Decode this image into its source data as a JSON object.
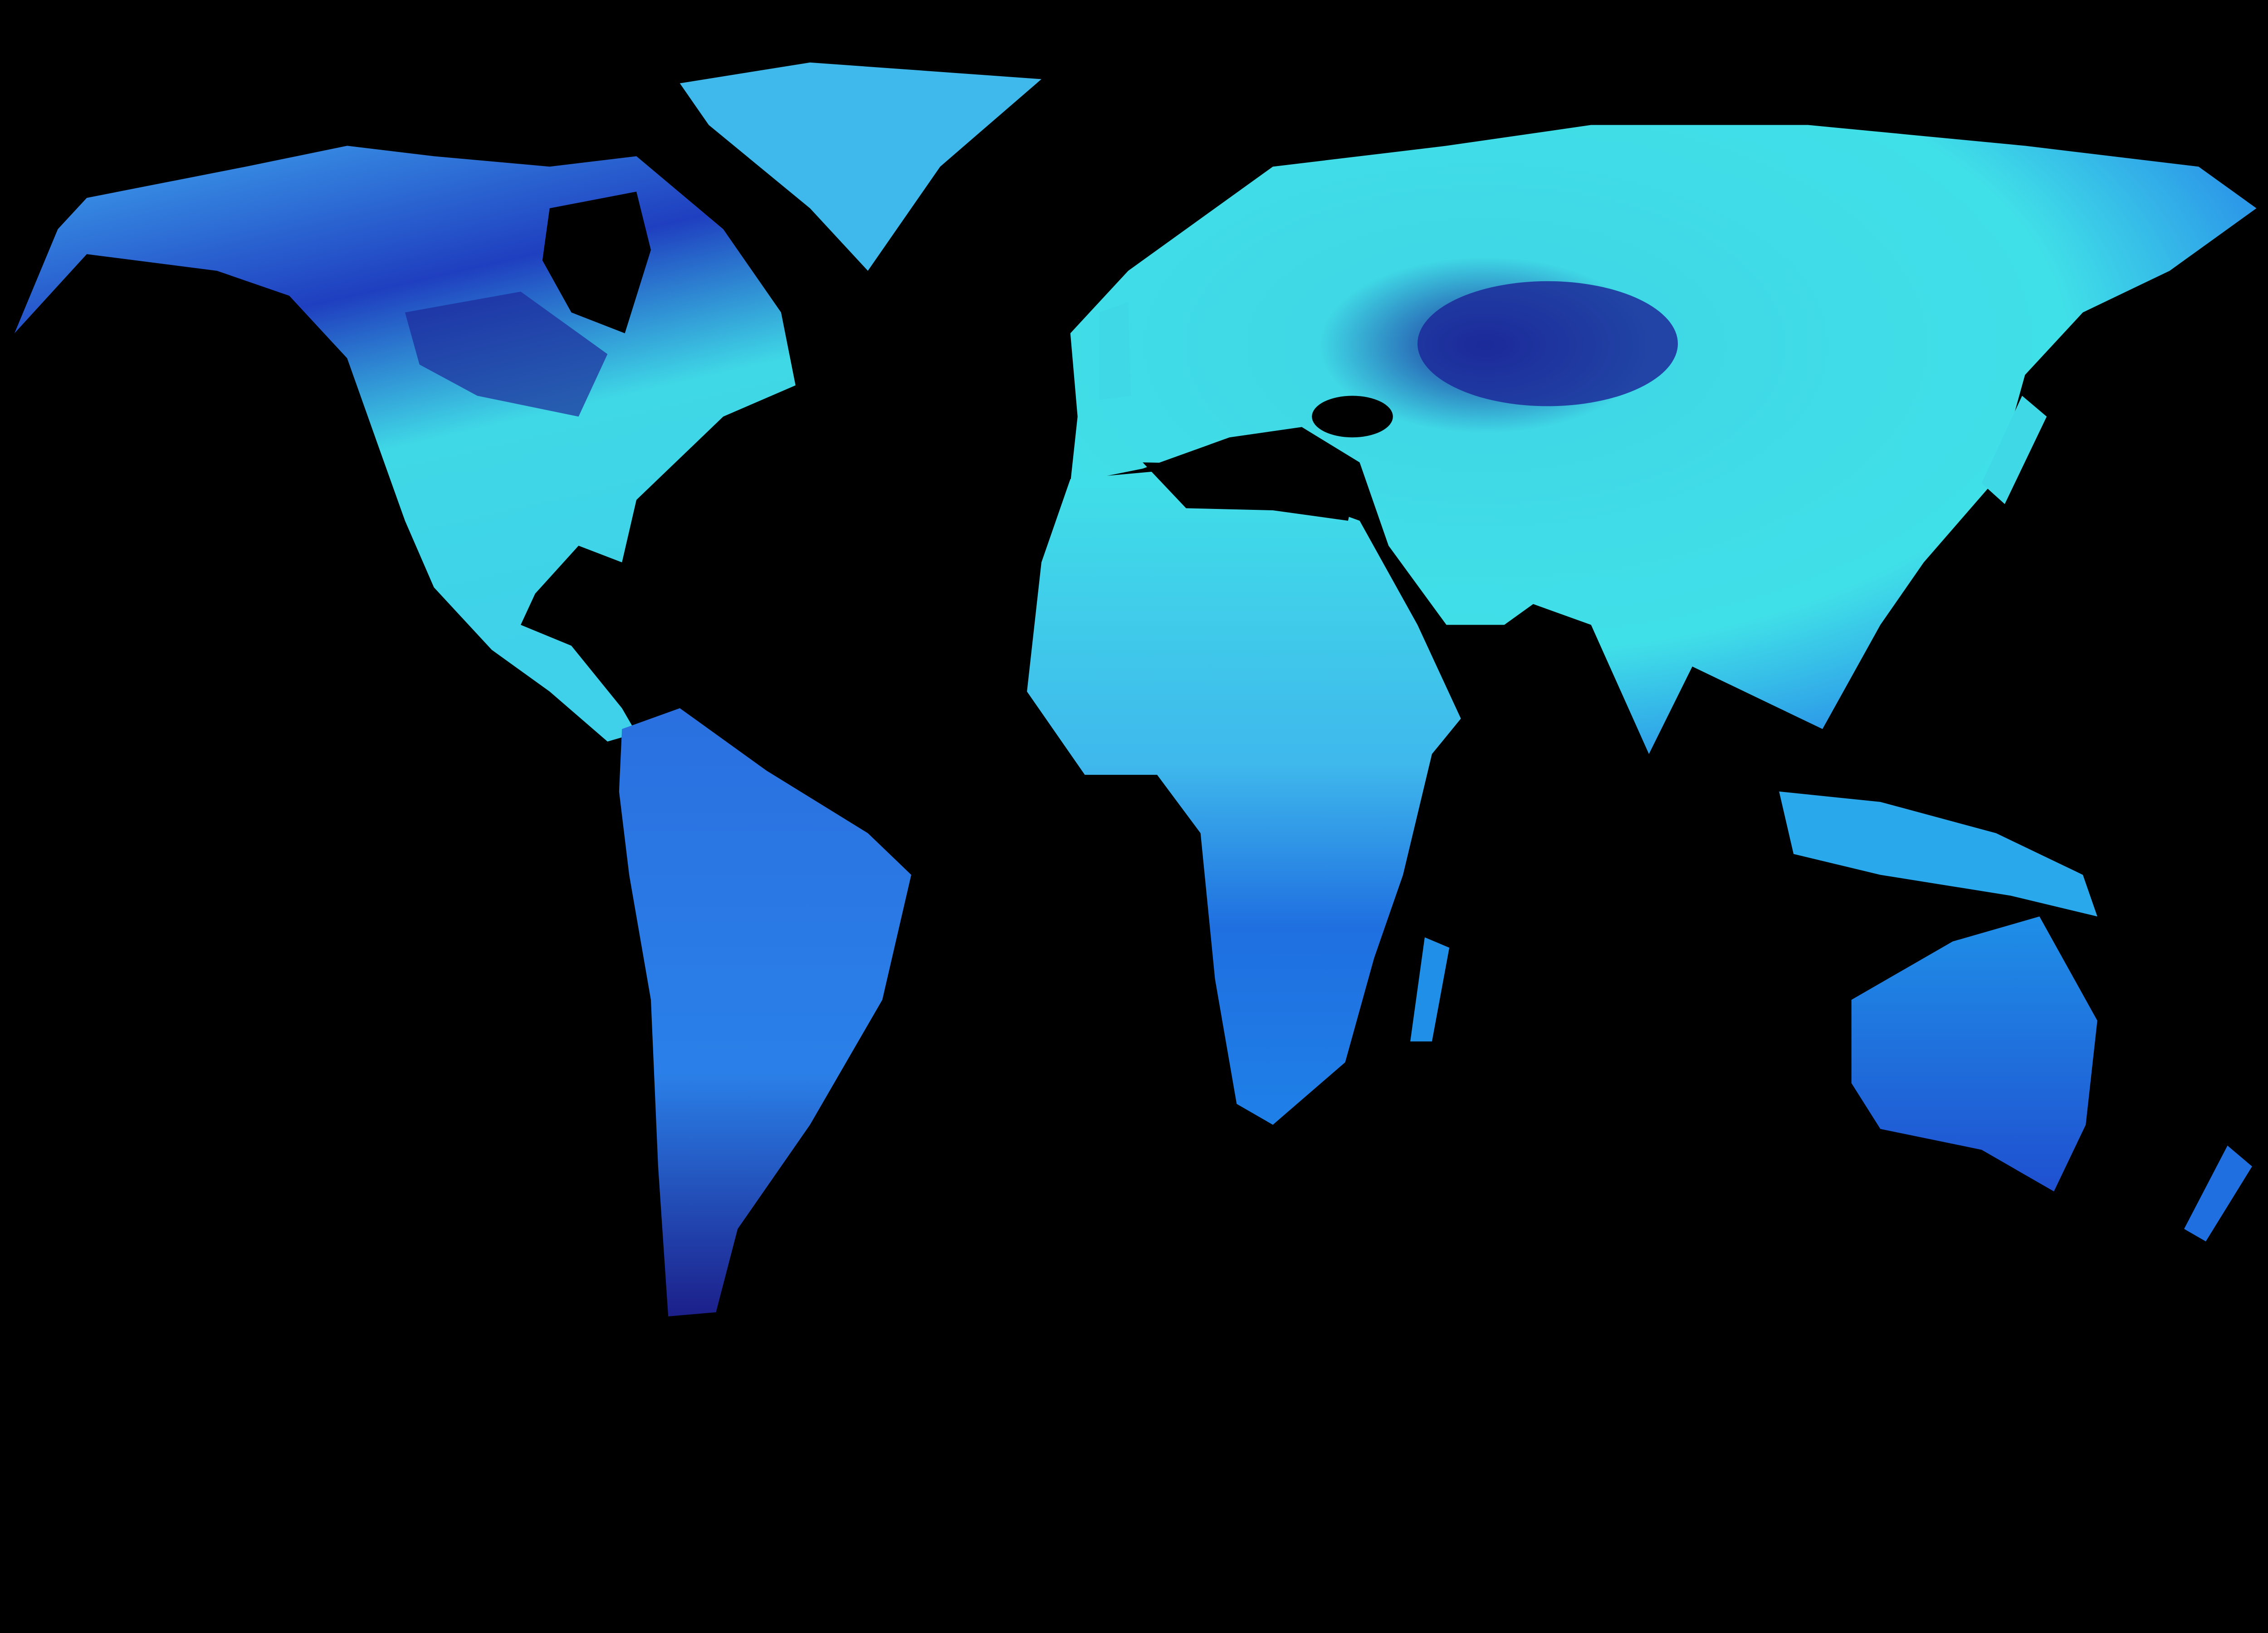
{
  "map": {
    "projection": "equirectangular",
    "background_color": "#000000",
    "colormap": [
      "#1c1f8a",
      "#1f4fd0",
      "#1f8fe8",
      "#3fd8e6",
      "#9ff5f0",
      "#f0a040"
    ],
    "regions": [
      "north-america",
      "greenland",
      "south-america",
      "africa",
      "madagascar",
      "eurasia",
      "japan",
      "british-isles",
      "maritime-southeast-asia",
      "australia",
      "new-zealand"
    ]
  }
}
